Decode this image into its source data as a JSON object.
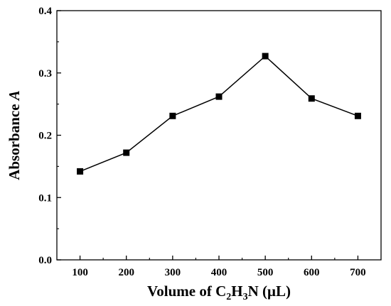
{
  "chart_data": {
    "type": "line",
    "title": "",
    "xlabel": {
      "prefix": "Volume of C",
      "sub1": "2",
      "mid": "H",
      "sub2": "3",
      "suffix": "N (μL)"
    },
    "ylabel": {
      "prefix": "Absorbance ",
      "italic": "A"
    },
    "xlim": [
      50,
      750
    ],
    "ylim": [
      0.0,
      0.4
    ],
    "x_ticks": [
      100,
      200,
      300,
      400,
      500,
      600,
      700
    ],
    "y_ticks": [
      0.0,
      0.1,
      0.2,
      0.3,
      0.4
    ],
    "x_tick_labels": [
      "100",
      "200",
      "300",
      "400",
      "500",
      "600",
      "700"
    ],
    "y_tick_labels": [
      "0.0",
      "0.1",
      "0.2",
      "0.3",
      "0.4"
    ],
    "grid": false,
    "legend": "none",
    "marker": "square",
    "color": "#000000",
    "series": [
      {
        "x": [
          100,
          200,
          300,
          400,
          500,
          600,
          700
        ],
        "y": [
          0.142,
          0.172,
          0.231,
          0.262,
          0.327,
          0.259,
          0.231
        ]
      }
    ]
  }
}
